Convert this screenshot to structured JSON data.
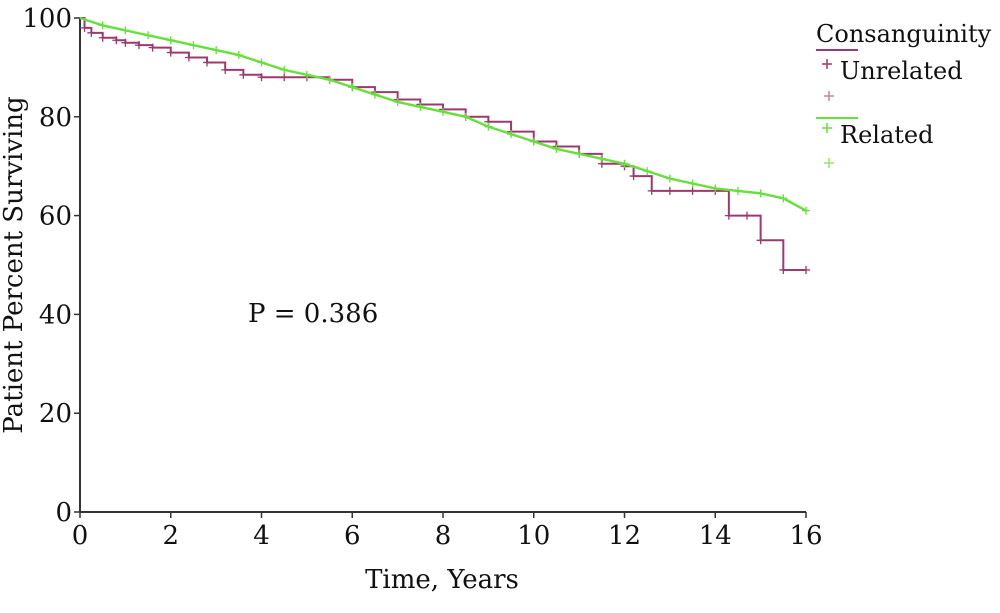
{
  "chart_data": {
    "type": "line",
    "xlabel": "Time, Years",
    "ylabel": "Patient Percent Surviving",
    "xlim": [
      0,
      16
    ],
    "ylim": [
      0,
      100
    ],
    "xticks": [
      "0",
      "2",
      "4",
      "6",
      "8",
      "10",
      "12",
      "14",
      "16"
    ],
    "yticks": [
      "0",
      "20",
      "40",
      "60",
      "80",
      "100"
    ],
    "grid": false,
    "legend": {
      "title": "Consanguinity",
      "placement": "top-right"
    },
    "annotation": "P = 0.386",
    "series": [
      {
        "name": "Unrelated",
        "color": "#9c3a6e",
        "step": true,
        "x": [
          0,
          0.1,
          0.25,
          0.5,
          0.8,
          1.0,
          1.3,
          1.6,
          2.0,
          2.4,
          2.8,
          3.2,
          3.6,
          4.0,
          4.5,
          5.0,
          5.5,
          6.0,
          6.5,
          7.0,
          7.5,
          8.0,
          8.5,
          9.0,
          9.5,
          10.0,
          10.5,
          11.0,
          11.5,
          12.0,
          12.2,
          12.6,
          13.0,
          13.5,
          14.0,
          14.3,
          14.7,
          15.0,
          15.5,
          16.0
        ],
        "y": [
          100,
          98,
          97,
          96,
          95.5,
          95,
          94.5,
          94,
          93,
          92,
          91,
          89.5,
          88.5,
          88,
          88,
          88,
          87.5,
          86,
          85,
          83.5,
          82.5,
          81.5,
          80,
          79,
          77,
          75,
          74,
          72.5,
          70.5,
          70,
          68,
          65,
          65,
          65,
          65,
          60,
          60,
          55,
          49,
          49
        ]
      },
      {
        "name": "Related",
        "color": "#66e03a",
        "step": false,
        "x": [
          0,
          0.5,
          1,
          1.5,
          2,
          2.5,
          3,
          3.5,
          4,
          4.5,
          5,
          5.5,
          6,
          6.5,
          7,
          7.5,
          8,
          8.5,
          9,
          9.5,
          10,
          10.5,
          11,
          11.5,
          12,
          12.5,
          13,
          13.5,
          14,
          14.5,
          15,
          15.5,
          16
        ],
        "y": [
          100,
          98.5,
          97.5,
          96.5,
          95.5,
          94.5,
          93.5,
          92.5,
          91,
          89.5,
          88.5,
          87.5,
          86,
          84.5,
          83,
          82,
          81,
          80,
          78,
          76.5,
          75,
          73.5,
          72.5,
          71.5,
          70.5,
          69,
          67.5,
          66.5,
          65.5,
          65,
          64.5,
          63.5,
          61
        ]
      }
    ]
  }
}
